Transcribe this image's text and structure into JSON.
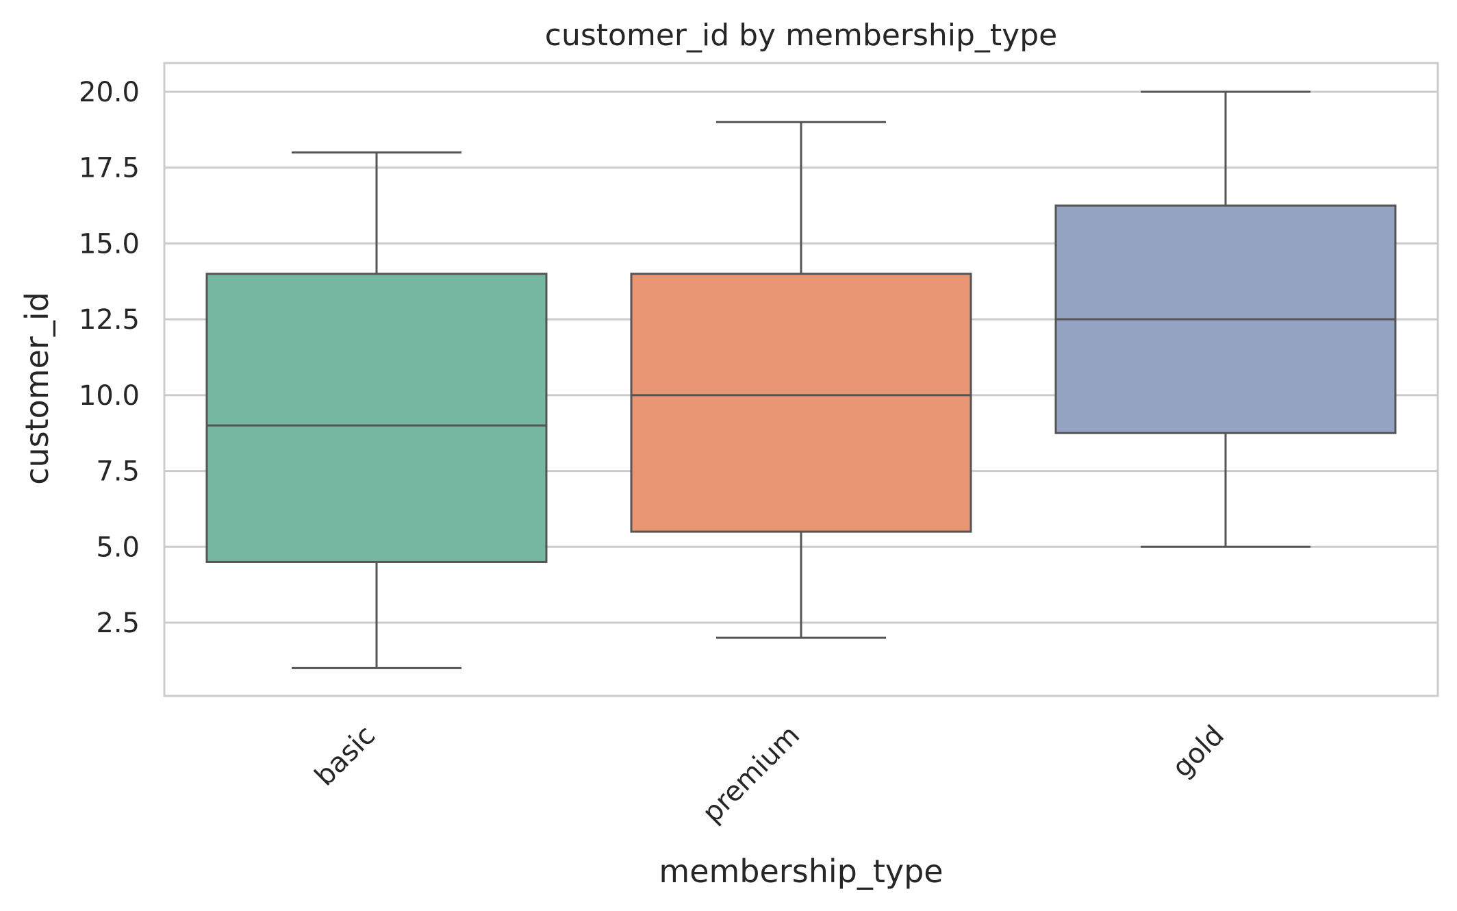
{
  "chart_data": {
    "type": "box",
    "title": "customer_id by membership_type",
    "xlabel": "membership_type",
    "ylabel": "customer_id",
    "ylim": [
      0,
      21
    ],
    "yticks": [
      2.5,
      5.0,
      7.5,
      10.0,
      12.5,
      15.0,
      17.5,
      20.0
    ],
    "yticklabels": [
      "2.5",
      "5.0",
      "7.5",
      "10.0",
      "12.5",
      "15.0",
      "17.5",
      "20.0"
    ],
    "grid": true,
    "categories": [
      "basic",
      "premium",
      "gold"
    ],
    "boxes": [
      {
        "category": "basic",
        "whisker_low": 1,
        "q1": 4.5,
        "median": 9,
        "q3": 14,
        "whisker_high": 18,
        "color": "#75b7a1"
      },
      {
        "category": "premium",
        "whisker_low": 2,
        "q1": 5.5,
        "median": 10,
        "q3": 14,
        "whisker_high": 19,
        "color": "#e89674"
      },
      {
        "category": "gold",
        "whisker_low": 5,
        "q1": 8.75,
        "median": 12.5,
        "q3": 16.25,
        "whisker_high": 20,
        "color": "#94a3c2"
      }
    ],
    "colors": {
      "grid": "#cccccc",
      "frame": "#cccccc",
      "line": "#555555"
    }
  }
}
